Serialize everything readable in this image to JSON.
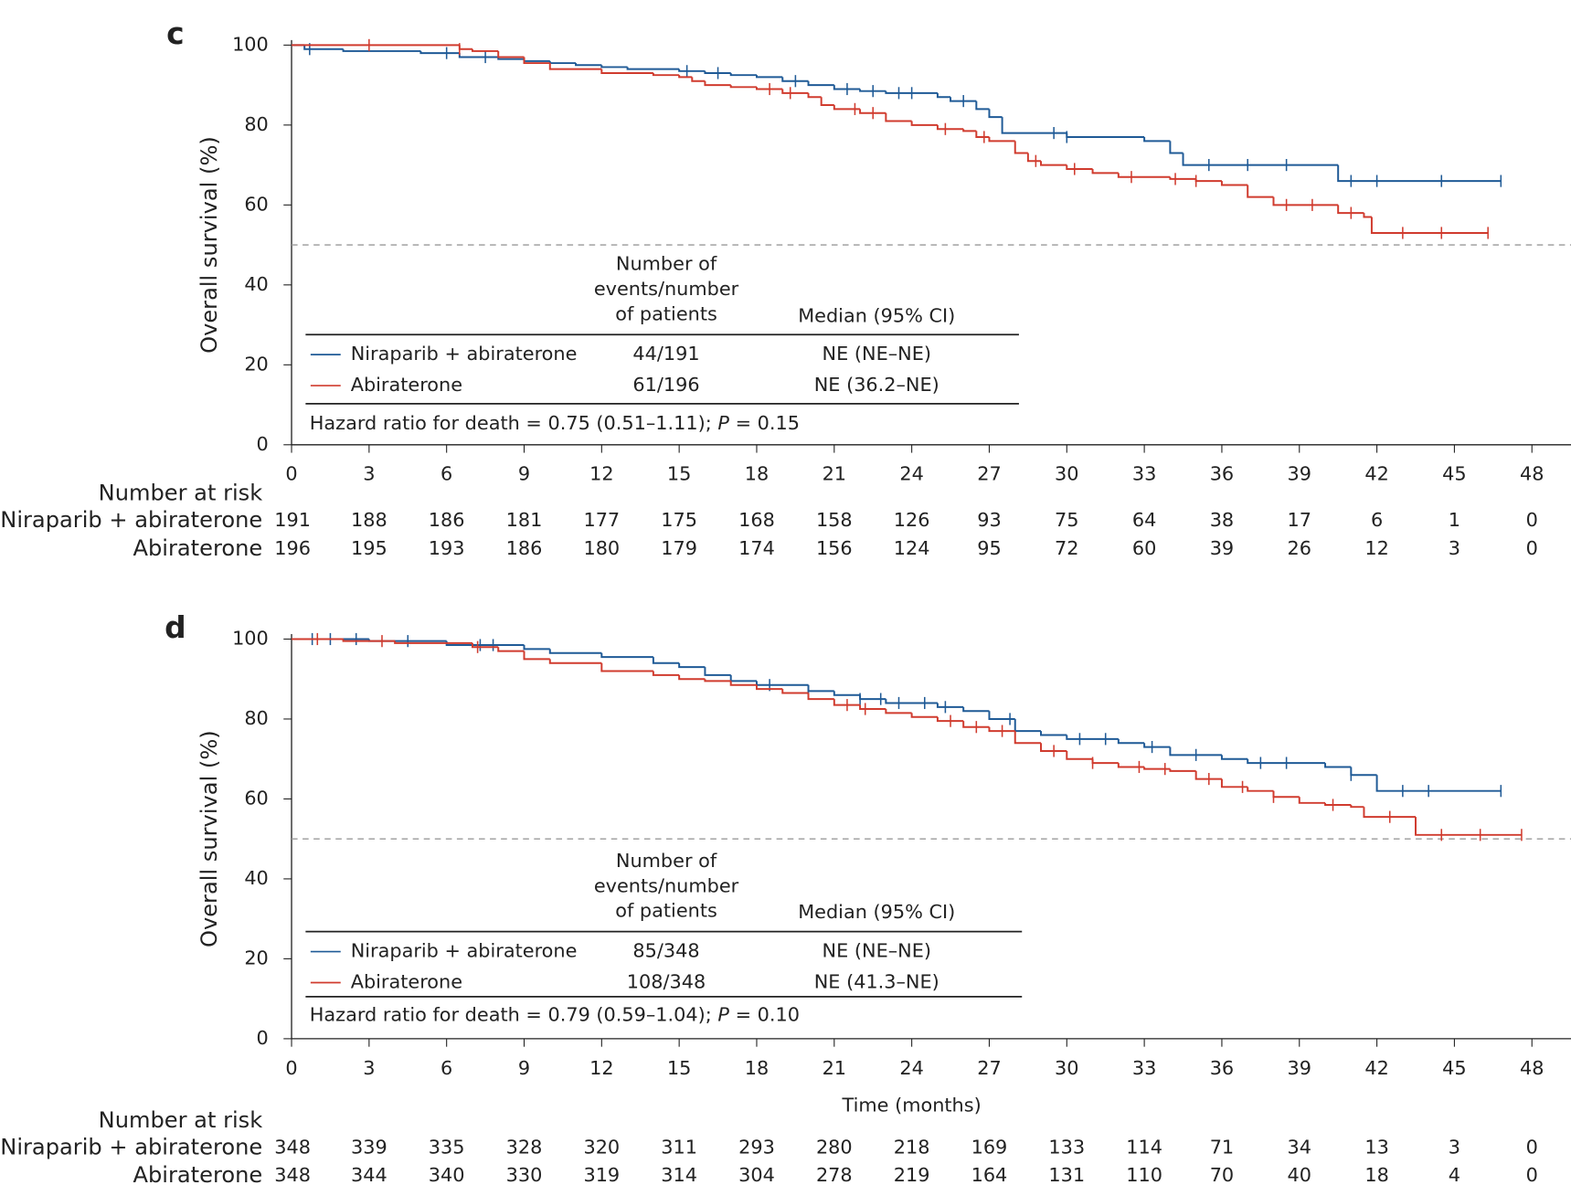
{
  "chart_data": [
    {
      "type": "km",
      "panel": "c",
      "ylabel": "Overall survival (%)",
      "xlim": [
        0,
        48
      ],
      "xticks": [
        0,
        3,
        6,
        9,
        12,
        15,
        18,
        21,
        24,
        27,
        30,
        33,
        36,
        39,
        42,
        45,
        48
      ],
      "ylim": [
        0,
        100
      ],
      "yticks": [
        0,
        20,
        40,
        60,
        80,
        100
      ],
      "reference_y": 50,
      "table_header": {
        "events": [
          "Number of",
          "events/number",
          "of patients"
        ],
        "median": "Median (95% CI)"
      },
      "hr_text": "Hazard ratio for death = 0.75 (0.51–1.11); ",
      "hr_p": "P",
      "hr_p_text": " = 0.15",
      "risk_title": "Number at risk",
      "series": [
        {
          "name": "Niraparib + abiraterone",
          "color": "#1f5a96",
          "events": "44/191",
          "median": "NE (NE–NE)",
          "x": [
            0,
            0.5,
            2,
            5,
            6.5,
            8,
            9,
            10,
            11,
            12,
            13,
            15,
            16,
            17,
            18,
            19,
            20,
            21,
            22,
            23,
            25,
            25.5,
            26.5,
            27,
            27.5,
            30,
            33,
            34,
            34.5,
            40.5,
            46.8
          ],
          "values": [
            100,
            99,
            98.5,
            98,
            97,
            96.5,
            96,
            95.5,
            95,
            94.5,
            94,
            93.5,
            93,
            92.5,
            92,
            91,
            90,
            89,
            88.5,
            88,
            87,
            86,
            84,
            82,
            78,
            77,
            76,
            73,
            70,
            66,
            66
          ],
          "censored": [
            0.7,
            6,
            7.5,
            15.3,
            16.5,
            19.5,
            21.5,
            22.5,
            23.5,
            24,
            26,
            29.5,
            30,
            35.5,
            37,
            38.5,
            41,
            42,
            44.5,
            46.8
          ],
          "at_risk": [
            191,
            188,
            186,
            181,
            177,
            175,
            168,
            158,
            126,
            93,
            75,
            64,
            38,
            17,
            6,
            1,
            0
          ]
        },
        {
          "name": "Abiraterone",
          "color": "#d03b2e",
          "events": "61/196",
          "median": "NE (36.2–NE)",
          "x": [
            0,
            6.5,
            7,
            8,
            9,
            10,
            12,
            14,
            15,
            15.5,
            16,
            17,
            18,
            19,
            20,
            20.5,
            21,
            22,
            23,
            24,
            25,
            26,
            26.5,
            27,
            28,
            28.5,
            29,
            30,
            31,
            32,
            34,
            35,
            36,
            37,
            38,
            40.5,
            41.5,
            41.8,
            46.3
          ],
          "values": [
            100,
            99,
            98.5,
            97,
            95.5,
            94,
            93,
            92.5,
            92,
            91,
            90,
            89.5,
            89,
            88,
            87,
            85,
            84,
            83,
            81,
            80,
            79,
            78.5,
            77,
            76,
            73,
            71,
            70,
            69,
            68,
            67,
            66.5,
            66,
            65,
            62,
            60,
            58,
            57,
            53,
            53
          ],
          "censored": [
            3,
            6.5,
            18.5,
            19.3,
            21.8,
            22.5,
            25.3,
            26.8,
            28.8,
            30.3,
            32.5,
            34.2,
            35,
            38.5,
            39.5,
            41,
            43,
            44.5,
            46.3
          ],
          "at_risk": [
            196,
            195,
            193,
            186,
            180,
            179,
            174,
            156,
            124,
            95,
            72,
            60,
            39,
            26,
            12,
            3,
            0
          ]
        }
      ]
    },
    {
      "type": "km",
      "panel": "d",
      "ylabel": "Overall survival (%)",
      "xlabel": "Time (months)",
      "xlim": [
        0,
        48
      ],
      "xticks": [
        0,
        3,
        6,
        9,
        12,
        15,
        18,
        21,
        24,
        27,
        30,
        33,
        36,
        39,
        42,
        45,
        48
      ],
      "ylim": [
        0,
        100
      ],
      "yticks": [
        0,
        20,
        40,
        60,
        80,
        100
      ],
      "reference_y": 50,
      "table_header": {
        "events": [
          "Number of",
          "events/number",
          "of patients"
        ],
        "median": "Median (95% CI)"
      },
      "hr_text": "Hazard ratio for death = 0.79 (0.59–1.04); ",
      "hr_p": "P",
      "hr_p_text": " = 0.10",
      "risk_title": "Number at risk",
      "series": [
        {
          "name": "Niraparib + abiraterone",
          "color": "#1f5a96",
          "events": "85/348",
          "median": "NE (NE–NE)",
          "x": [
            0,
            3,
            6,
            9,
            10,
            12,
            14,
            15,
            16,
            17,
            18,
            20,
            21,
            22,
            23,
            25,
            26,
            27,
            28,
            29,
            30,
            32,
            33,
            34,
            36,
            37,
            40,
            41,
            42,
            46.8
          ],
          "values": [
            100,
            99.5,
            98.5,
            97.5,
            96.5,
            95.5,
            94,
            93,
            91,
            89.5,
            88.5,
            87,
            86,
            85,
            84,
            83,
            82,
            80,
            77,
            76,
            75,
            74,
            73,
            71,
            70,
            69,
            68,
            66,
            62,
            62
          ],
          "censored": [
            0.8,
            1.5,
            2.5,
            4.5,
            7.3,
            7.8,
            18.5,
            20,
            22,
            22.8,
            23.5,
            24.5,
            25.3,
            27.8,
            30.5,
            31.5,
            33.3,
            35,
            37.5,
            38.5,
            41,
            43,
            44,
            46.8
          ],
          "at_risk": [
            348,
            339,
            335,
            328,
            320,
            311,
            293,
            280,
            218,
            169,
            133,
            114,
            71,
            34,
            13,
            3,
            0
          ]
        },
        {
          "name": "Abiraterone",
          "color": "#d03b2e",
          "events": "108/348",
          "median": "NE (41.3–NE)",
          "x": [
            0,
            2,
            4,
            7,
            8,
            9,
            10,
            12,
            14,
            15,
            16,
            17,
            18,
            19,
            20,
            21,
            22,
            23,
            24,
            25,
            26,
            27,
            28,
            29,
            30,
            31,
            32,
            33,
            34,
            35,
            36,
            37,
            38,
            39,
            40,
            41,
            41.5,
            43.5,
            47.6
          ],
          "values": [
            100,
            99.5,
            99,
            98,
            97,
            95,
            94,
            92,
            91,
            90,
            89.5,
            88.5,
            87.5,
            86.5,
            85,
            83.5,
            82.5,
            81.5,
            80.5,
            79.5,
            78,
            77,
            74,
            72,
            70,
            69,
            68,
            67.5,
            67,
            65,
            63,
            62,
            60.5,
            59,
            58.5,
            58,
            55.5,
            51,
            51
          ],
          "censored": [
            1,
            3.5,
            7.2,
            21.5,
            22.2,
            25.5,
            26.5,
            27.5,
            29.5,
            31,
            32.8,
            33.8,
            35.5,
            36.8,
            38,
            40.3,
            42.5,
            44.5,
            46,
            47.6
          ],
          "at_risk": [
            348,
            344,
            340,
            330,
            319,
            314,
            304,
            278,
            219,
            164,
            131,
            110,
            70,
            40,
            18,
            4,
            0
          ]
        }
      ]
    }
  ]
}
